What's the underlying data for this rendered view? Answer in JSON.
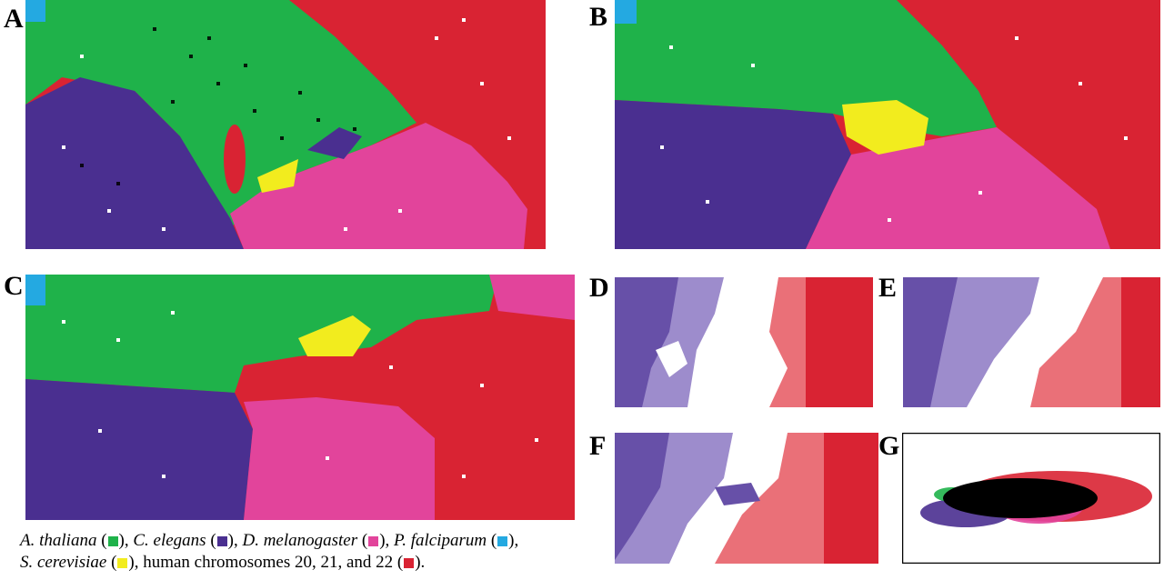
{
  "figure": {
    "panels": [
      {
        "label": "A"
      },
      {
        "label": "B"
      },
      {
        "label": "C"
      },
      {
        "label": "D"
      },
      {
        "label": "E"
      },
      {
        "label": "F"
      },
      {
        "label": "G"
      }
    ],
    "legend": {
      "items": [
        {
          "name": "A. thaliana",
          "color": "#1fb24a"
        },
        {
          "name": "C. elegans",
          "color": "#4a2f90"
        },
        {
          "name": "D. melanogaster",
          "color": "#e2449b"
        },
        {
          "name": "P. falciparum",
          "color": "#24a9e1"
        },
        {
          "name": "S. cerevisiae",
          "color": "#f2ec1e"
        },
        {
          "name": "human chromosomes 20, 21, and 22",
          "color": "#d92333"
        }
      ],
      "connector": "and"
    }
  }
}
